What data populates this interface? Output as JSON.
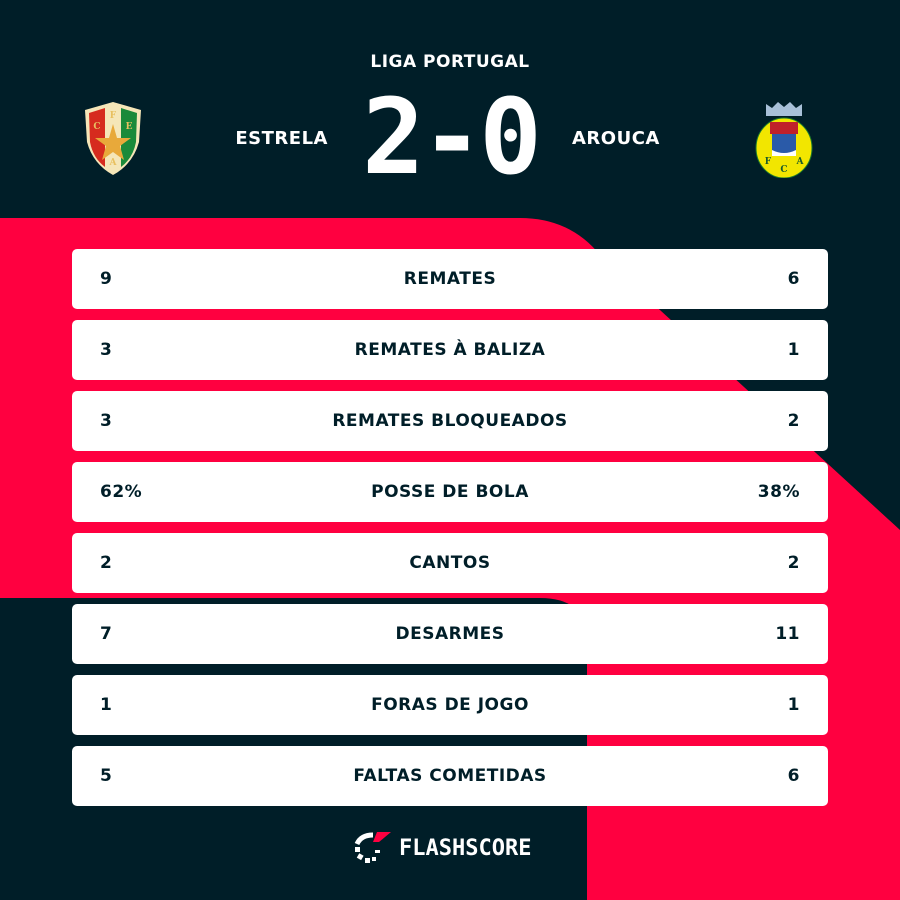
{
  "header": {
    "league": "LIGA PORTUGAL",
    "home_team": "ESTRELA",
    "away_team": "AROUCA",
    "score": "2-0",
    "home_logo_letters": "CFEA",
    "away_logo_letters": "FCA"
  },
  "stats": [
    {
      "home": "9",
      "label": "REMATES",
      "away": "6"
    },
    {
      "home": "3",
      "label": "REMATES À BALIZA",
      "away": "1"
    },
    {
      "home": "3",
      "label": "REMATES BLOQUEADOS",
      "away": "2"
    },
    {
      "home": "62%",
      "label": "POSSE DE BOLA",
      "away": "38%"
    },
    {
      "home": "2",
      "label": "CANTOS",
      "away": "2"
    },
    {
      "home": "7",
      "label": "DESARMES",
      "away": "11"
    },
    {
      "home": "1",
      "label": "FORAS DE JOGO",
      "away": "1"
    },
    {
      "home": "5",
      "label": "FALTAS COMETIDAS",
      "away": "6"
    }
  ],
  "footer": {
    "brand": "FLASHSCORE"
  },
  "colors": {
    "background": "#001e28",
    "accent": "#ff0040",
    "card": "#ffffff"
  }
}
